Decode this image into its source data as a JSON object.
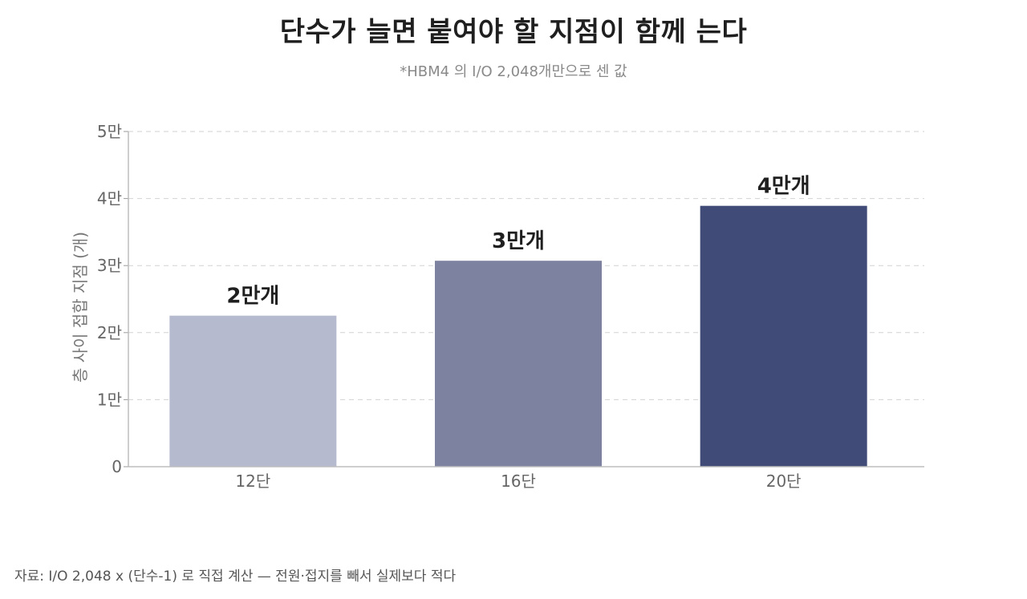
{
  "header": {
    "title": "단수가 늘면 붙여야 할 지점이 함께 는다",
    "subtitle": "*HBM4 의 I/O 2,048개만으로 센 값"
  },
  "footer": {
    "source": "자료: I/O 2,048 x (단수-1) 로 직접 계산 — 전원·접지를 빼서 실제보다 적다"
  },
  "chart_data": {
    "type": "bar",
    "title": "단수가 늘면 붙여야 할 지점이 함께 는다",
    "subtitle": "*HBM4 의 I/O 2,048개만으로 센 값",
    "categories": [
      "12단",
      "16단",
      "20단"
    ],
    "values": [
      22528,
      30720,
      38912
    ],
    "data_labels": [
      "2만개",
      "3만개",
      "4만개"
    ],
    "ylabel": "층 사이 접합 지점 (개)",
    "xlabel": "",
    "ylim": [
      0,
      50000
    ],
    "yticks": [
      0,
      10000,
      20000,
      30000,
      40000,
      50000
    ],
    "ytick_labels": [
      "0",
      "1만",
      "2만",
      "3만",
      "4만",
      "5만"
    ],
    "grid": true,
    "legend": "none",
    "colors": [
      "#b6bace",
      "#7c829f",
      "#414b77"
    ],
    "colors_meaning": "bar fill per category, light to dark"
  }
}
